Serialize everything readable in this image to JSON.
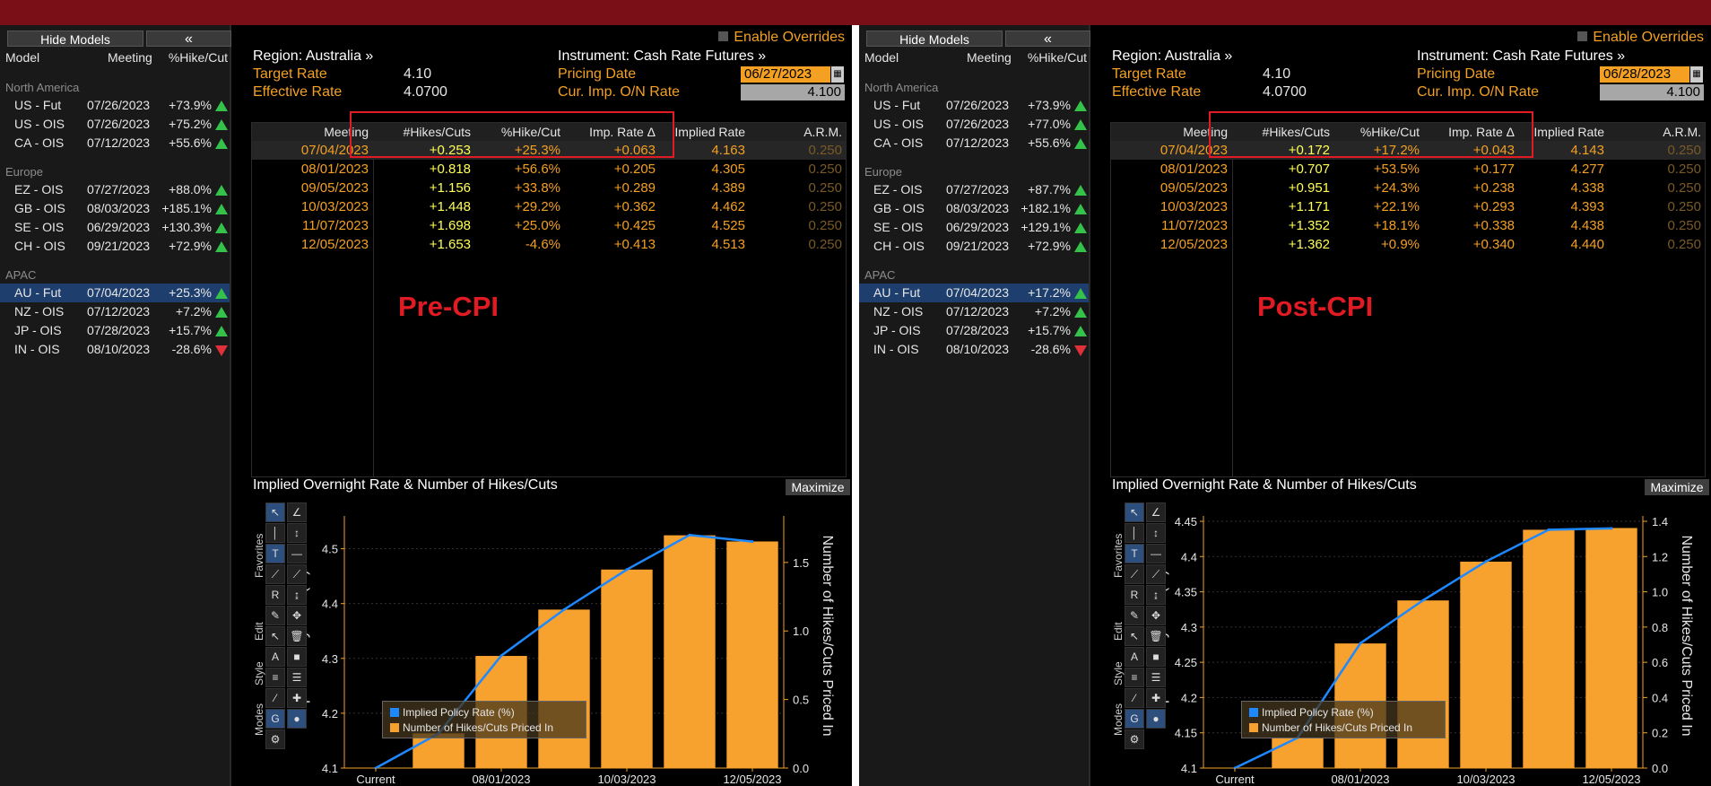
{
  "panels": [
    {
      "sidebar": {
        "hide_models": "Hide Models",
        "collapse": "«",
        "headers": {
          "model": "Model",
          "meeting": "Meeting",
          "pct": "%Hike/Cut"
        },
        "groups": [
          {
            "name": "North America",
            "rows": [
              {
                "model": "US - Fut",
                "meeting": "07/26/2023",
                "pct": "+73.9%",
                "dir": "up"
              },
              {
                "model": "US - OIS",
                "meeting": "07/26/2023",
                "pct": "+75.2%",
                "dir": "up"
              },
              {
                "model": "CA - OIS",
                "meeting": "07/12/2023",
                "pct": "+55.6%",
                "dir": "up"
              }
            ]
          },
          {
            "name": "Europe",
            "rows": [
              {
                "model": "EZ - OIS",
                "meeting": "07/27/2023",
                "pct": "+88.0%",
                "dir": "up"
              },
              {
                "model": "GB - OIS",
                "meeting": "08/03/2023",
                "pct": "+185.1%",
                "dir": "up"
              },
              {
                "model": "SE - OIS",
                "meeting": "06/29/2023",
                "pct": "+130.3%",
                "dir": "up"
              },
              {
                "model": "CH - OIS",
                "meeting": "09/21/2023",
                "pct": "+72.9%",
                "dir": "up"
              }
            ]
          },
          {
            "name": "APAC",
            "rows": [
              {
                "model": "AU - Fut",
                "meeting": "07/04/2023",
                "pct": "+25.3%",
                "dir": "up",
                "selected": true
              },
              {
                "model": "NZ - OIS",
                "meeting": "07/12/2023",
                "pct": "+7.2%",
                "dir": "up"
              },
              {
                "model": "JP - OIS",
                "meeting": "07/28/2023",
                "pct": "+15.7%",
                "dir": "up"
              },
              {
                "model": "IN - OIS",
                "meeting": "08/10/2023",
                "pct": "-28.6%",
                "dir": "down"
              }
            ]
          }
        ]
      },
      "header": {
        "enable_overrides": "Enable Overrides",
        "region": "Region: Australia »",
        "instrument": "Instrument: Cash Rate Futures »",
        "target_rate_label": "Target Rate",
        "target_rate": "4.10",
        "effective_rate_label": "Effective Rate",
        "effective_rate": "4.0700",
        "pricing_date_label": "Pricing Date",
        "pricing_date": "06/27/2023",
        "cur_imp_label": "Cur. Imp. O/N Rate",
        "cur_imp": "4.100"
      },
      "table": {
        "headers": {
          "meeting": "Meeting",
          "hikes": "#Hikes/Cuts",
          "pct": "%Hike/Cut",
          "delta": "Imp. Rate Δ",
          "implied": "Implied Rate",
          "arm": "A.R.M."
        },
        "rows": [
          {
            "meeting": "07/04/2023",
            "hikes": "+0.253",
            "pct": "+25.3%",
            "delta": "+0.063",
            "implied": "4.163",
            "arm": "0.250"
          },
          {
            "meeting": "08/01/2023",
            "hikes": "+0.818",
            "pct": "+56.6%",
            "delta": "+0.205",
            "implied": "4.305",
            "arm": "0.250"
          },
          {
            "meeting": "09/05/2023",
            "hikes": "+1.156",
            "pct": "+33.8%",
            "delta": "+0.289",
            "implied": "4.389",
            "arm": "0.250"
          },
          {
            "meeting": "10/03/2023",
            "hikes": "+1.448",
            "pct": "+29.2%",
            "delta": "+0.362",
            "implied": "4.462",
            "arm": "0.250"
          },
          {
            "meeting": "11/07/2023",
            "hikes": "+1.698",
            "pct": "+25.0%",
            "delta": "+0.425",
            "implied": "4.525",
            "arm": "0.250"
          },
          {
            "meeting": "12/05/2023",
            "hikes": "+1.653",
            "pct": "-4.6%",
            "delta": "+0.413",
            "implied": "4.513",
            "arm": "0.250"
          }
        ]
      },
      "annotation": "Pre-CPI",
      "chart": {
        "title": "Implied Overnight Rate & Number of Hikes/Cuts",
        "maximize": "Maximize",
        "ylabel_left": "Implied Policy Rate (%)",
        "ylabel_right": "Number of Hikes/Cuts Priced In",
        "legend_line": "Implied Policy Rate (%)",
        "legend_bar": "Number of Hikes/Cuts Priced In"
      }
    },
    {
      "sidebar": {
        "hide_models": "Hide Models",
        "collapse": "«",
        "headers": {
          "model": "Model",
          "meeting": "Meeting",
          "pct": "%Hike/Cut"
        },
        "groups": [
          {
            "name": "North America",
            "rows": [
              {
                "model": "US - Fut",
                "meeting": "07/26/2023",
                "pct": "+73.9%",
                "dir": "up"
              },
              {
                "model": "US - OIS",
                "meeting": "07/26/2023",
                "pct": "+77.0%",
                "dir": "up"
              },
              {
                "model": "CA - OIS",
                "meeting": "07/12/2023",
                "pct": "+55.6%",
                "dir": "up"
              }
            ]
          },
          {
            "name": "Europe",
            "rows": [
              {
                "model": "EZ - OIS",
                "meeting": "07/27/2023",
                "pct": "+87.7%",
                "dir": "up"
              },
              {
                "model": "GB - OIS",
                "meeting": "08/03/2023",
                "pct": "+182.1%",
                "dir": "up"
              },
              {
                "model": "SE - OIS",
                "meeting": "06/29/2023",
                "pct": "+129.1%",
                "dir": "up"
              },
              {
                "model": "CH - OIS",
                "meeting": "09/21/2023",
                "pct": "+72.9%",
                "dir": "up"
              }
            ]
          },
          {
            "name": "APAC",
            "rows": [
              {
                "model": "AU - Fut",
                "meeting": "07/04/2023",
                "pct": "+17.2%",
                "dir": "up",
                "selected": true
              },
              {
                "model": "NZ - OIS",
                "meeting": "07/12/2023",
                "pct": "+7.2%",
                "dir": "up"
              },
              {
                "model": "JP - OIS",
                "meeting": "07/28/2023",
                "pct": "+15.7%",
                "dir": "up"
              },
              {
                "model": "IN - OIS",
                "meeting": "08/10/2023",
                "pct": "-28.6%",
                "dir": "down"
              }
            ]
          }
        ]
      },
      "header": {
        "enable_overrides": "Enable Overrides",
        "region": "Region: Australia »",
        "instrument": "Instrument: Cash Rate Futures »",
        "target_rate_label": "Target Rate",
        "target_rate": "4.10",
        "effective_rate_label": "Effective Rate",
        "effective_rate": "4.0700",
        "pricing_date_label": "Pricing Date",
        "pricing_date": "06/28/2023",
        "cur_imp_label": "Cur. Imp. O/N Rate",
        "cur_imp": "4.100"
      },
      "table": {
        "headers": {
          "meeting": "Meeting",
          "hikes": "#Hikes/Cuts",
          "pct": "%Hike/Cut",
          "delta": "Imp. Rate Δ",
          "implied": "Implied Rate",
          "arm": "A.R.M."
        },
        "rows": [
          {
            "meeting": "07/04/2023",
            "hikes": "+0.172",
            "pct": "+17.2%",
            "delta": "+0.043",
            "implied": "4.143",
            "arm": "0.250"
          },
          {
            "meeting": "08/01/2023",
            "hikes": "+0.707",
            "pct": "+53.5%",
            "delta": "+0.177",
            "implied": "4.277",
            "arm": "0.250"
          },
          {
            "meeting": "09/05/2023",
            "hikes": "+0.951",
            "pct": "+24.3%",
            "delta": "+0.238",
            "implied": "4.338",
            "arm": "0.250"
          },
          {
            "meeting": "10/03/2023",
            "hikes": "+1.171",
            "pct": "+22.1%",
            "delta": "+0.293",
            "implied": "4.393",
            "arm": "0.250"
          },
          {
            "meeting": "11/07/2023",
            "hikes": "+1.352",
            "pct": "+18.1%",
            "delta": "+0.338",
            "implied": "4.438",
            "arm": "0.250"
          },
          {
            "meeting": "12/05/2023",
            "hikes": "+1.362",
            "pct": "+0.9%",
            "delta": "+0.340",
            "implied": "4.440",
            "arm": "0.250"
          }
        ]
      },
      "annotation": "Post-CPI",
      "chart": {
        "title": "Implied Overnight Rate & Number of Hikes/Cuts",
        "maximize": "Maximize",
        "ylabel_left": "Implied Policy Rate (%)",
        "ylabel_right": "Number of Hikes/Cuts Priced In",
        "legend_line": "Implied Policy Rate (%)",
        "legend_bar": "Number of Hikes/Cuts Priced In"
      }
    }
  ],
  "toolbar_labels": {
    "favorites": "Favorites",
    "edit": "Edit",
    "style": "Style",
    "modes": "Modes"
  },
  "colors": {
    "line": "#1e88ff",
    "bar": "#f7a12e",
    "accent": "#f3a023",
    "annotation": "#e01b24"
  },
  "chart_data": [
    {
      "type": "bar",
      "x": [
        "Current",
        "07/04/2023",
        "08/01/2023",
        "09/05/2023",
        "10/03/2023",
        "11/07/2023",
        "12/05/2023"
      ],
      "x_tick_labels": [
        "Current",
        "08/01/2023",
        "10/03/2023",
        "12/05/2023"
      ],
      "series": [
        {
          "name": "Number of Hikes/Cuts Priced In",
          "type": "bar",
          "axis": "right",
          "values": [
            0,
            0.253,
            0.818,
            1.156,
            1.448,
            1.698,
            1.653
          ]
        },
        {
          "name": "Implied Policy Rate (%)",
          "type": "line",
          "axis": "left",
          "values": [
            4.1,
            4.163,
            4.305,
            4.389,
            4.462,
            4.525,
            4.513
          ]
        }
      ],
      "ylim_left": [
        4.1,
        4.55
      ],
      "yticks_left": [
        4.1,
        4.2,
        4.3,
        4.4,
        4.5
      ],
      "ylim_right": [
        0,
        1.8
      ],
      "yticks_right": [
        0.0,
        0.5,
        1.0,
        1.5
      ],
      "ylabel": "Implied Policy Rate (%)",
      "ylabel_right": "Number of Hikes/Cuts Priced In",
      "legend": "bottom-left"
    },
    {
      "type": "bar",
      "x": [
        "Current",
        "07/04/2023",
        "08/01/2023",
        "09/05/2023",
        "10/03/2023",
        "11/07/2023",
        "12/05/2023"
      ],
      "x_tick_labels": [
        "Current",
        "08/01/2023",
        "10/03/2023",
        "12/05/2023"
      ],
      "series": [
        {
          "name": "Number of Hikes/Cuts Priced In",
          "type": "bar",
          "axis": "right",
          "values": [
            0,
            0.172,
            0.707,
            0.951,
            1.171,
            1.352,
            1.362
          ]
        },
        {
          "name": "Implied Policy Rate (%)",
          "type": "line",
          "axis": "left",
          "values": [
            4.1,
            4.143,
            4.277,
            4.338,
            4.393,
            4.438,
            4.44
          ]
        }
      ],
      "ylim_left": [
        4.1,
        4.45
      ],
      "yticks_left": [
        4.1,
        4.15,
        4.2,
        4.25,
        4.3,
        4.35,
        4.4,
        4.45
      ],
      "ylim_right": [
        0,
        1.4
      ],
      "yticks_right": [
        0.0,
        0.2,
        0.4,
        0.6,
        0.8,
        1.0,
        1.2,
        1.4
      ],
      "ylabel": "Implied Policy Rate (%)",
      "ylabel_right": "Number of Hikes/Cuts Priced In",
      "legend": "bottom-left"
    }
  ]
}
